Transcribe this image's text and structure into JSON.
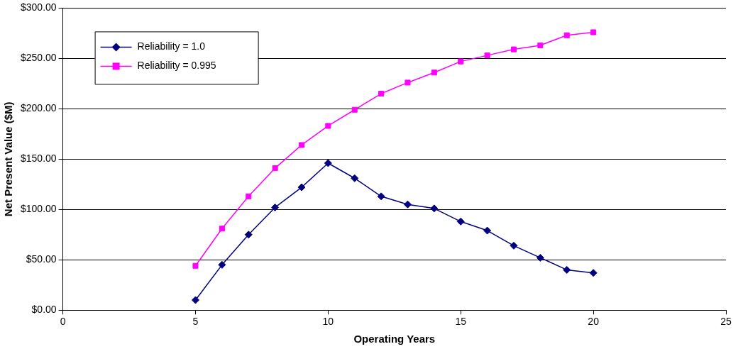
{
  "chart_data": {
    "type": "line",
    "xlabel": "Operating Years",
    "ylabel": "Net Present Value ($M)",
    "x": [
      5,
      6,
      7,
      8,
      9,
      10,
      11,
      12,
      13,
      14,
      15,
      16,
      17,
      18,
      19,
      20
    ],
    "series": [
      {
        "name": "Reliability = 1.0",
        "color": "#000080",
        "marker": "diamond",
        "values": [
          10,
          45,
          75,
          102,
          122,
          146,
          131,
          113,
          105,
          101,
          88,
          79,
          64,
          52,
          40,
          37
        ]
      },
      {
        "name": "Reliability = 0.995",
        "color": "#ff00ff",
        "marker": "square",
        "values": [
          44,
          81,
          113,
          141,
          164,
          183,
          199,
          215,
          226,
          236,
          247,
          253,
          259,
          263,
          273,
          276
        ]
      }
    ],
    "xlim": [
      0,
      25
    ],
    "xticks": [
      0,
      5,
      10,
      15,
      20,
      25
    ],
    "ylim": [
      0,
      300
    ],
    "yticks": [
      {
        "value": 0,
        "label": "$0.00"
      },
      {
        "value": 50,
        "label": "$50.00"
      },
      {
        "value": 100,
        "label": "$100.00"
      },
      {
        "value": 150,
        "label": "$150.00"
      },
      {
        "value": 200,
        "label": "$200.00"
      },
      {
        "value": 250,
        "label": "$250.00"
      },
      {
        "value": 300,
        "label": "$300.00"
      }
    ],
    "grid": "y",
    "legend": "top left"
  }
}
